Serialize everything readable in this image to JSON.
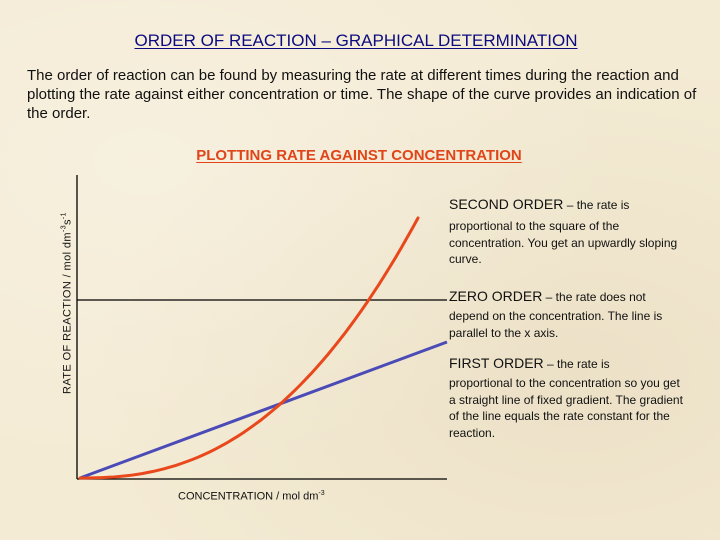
{
  "slide": {
    "title": "ORDER OF REACTION – GRAPHICAL DETERMINATION",
    "intro": "The order of reaction can be found by measuring the rate at different times during the reaction and plotting the rate against either concentration or time. The shape of the curve provides an indication of the order.",
    "subtitle": "PLOTTING RATE AGAINST CONCENTRATION"
  },
  "axes": {
    "ylabel_text": "RATE OF REACTION / mol dm",
    "ylabel_sup1": "-3",
    "ylabel_mid": "s",
    "ylabel_sup2": "-1",
    "xlabel_text": "CONCENTRATION / mol dm",
    "xlabel_sup": "-3"
  },
  "notes": {
    "second": {
      "heading": "SECOND ORDER",
      "heading_rest": " – the rate is",
      "body": "proportional to the  square of the concentration.  You get an upwardly sloping curve."
    },
    "zero": {
      "heading": "ZERO ORDER",
      "heading_rest": " – the rate does not",
      "body": "depend on the concentration. The line is parallel to the x axis."
    },
    "first": {
      "heading": "FIRST ORDER",
      "heading_rest": " – the rate is",
      "body": "proportional to the concentration so you get a straight line of fixed gradient. The gradient of the line equals the rate constant for the reaction."
    }
  },
  "colors": {
    "title": "#0c0c80",
    "subtitle": "#e0451a",
    "zero_order": "#000000",
    "first_order": "#4b4bb8",
    "second_order": "#e8481c",
    "axes": "#000000"
  }
}
